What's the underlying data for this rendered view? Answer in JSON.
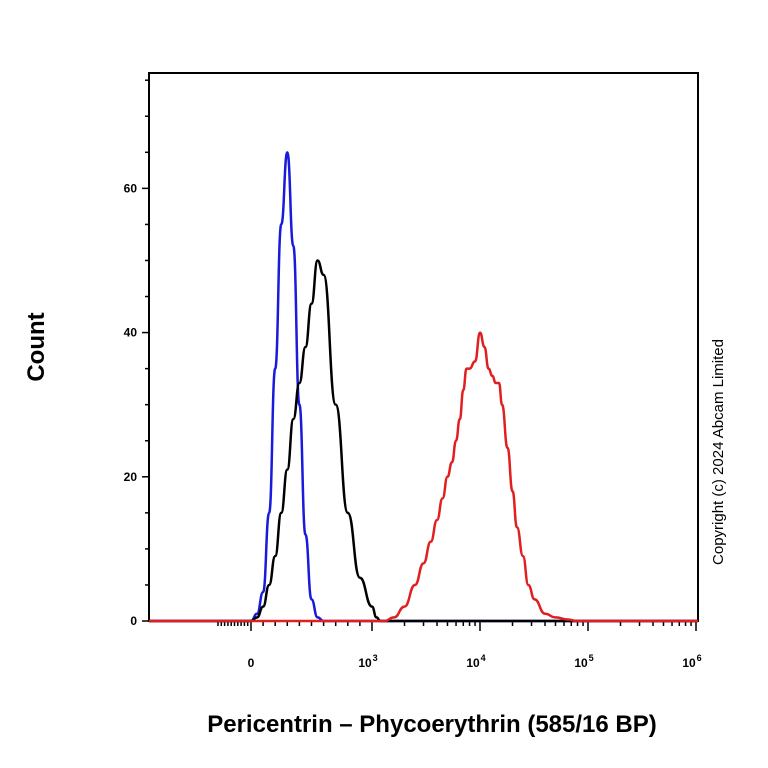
{
  "chart_data": {
    "type": "line",
    "title": "",
    "xlabel": "Pericentrin – Phycoerythrin (585/16 BP)",
    "ylabel": "Count",
    "x_scale": "biexponential",
    "xlim": [
      -1000,
      1000000
    ],
    "ylim": [
      0,
      76
    ],
    "y_ticks": [
      0,
      20,
      40,
      60
    ],
    "y_tick_labels": [
      "0",
      "20",
      "40",
      "60"
    ],
    "x_ticks": [
      {
        "value": 0,
        "label": "0",
        "exp": ""
      },
      {
        "value": 1000,
        "label": "10",
        "exp": "3"
      },
      {
        "value": 10000,
        "label": "10",
        "exp": "4"
      },
      {
        "value": 100000,
        "label": "10",
        "exp": "5"
      },
      {
        "value": 1000000,
        "label": "10",
        "exp": "6"
      }
    ],
    "grid": false,
    "legend": "none",
    "series": [
      {
        "color": "#1a1adc",
        "x": [
          0,
          50,
          100,
          150,
          200,
          250,
          300,
          350,
          400,
          450,
          500,
          550,
          600,
          700
        ],
        "y": [
          0,
          1,
          4,
          15,
          35,
          55,
          65,
          52,
          30,
          12,
          3,
          0.5,
          0,
          0
        ]
      },
      {
        "color": "#000000",
        "x": [
          0,
          50,
          100,
          150,
          200,
          250,
          300,
          350,
          400,
          450,
          500,
          550,
          600,
          700,
          800,
          900,
          1000,
          1100,
          1200
        ],
        "y": [
          0,
          0.5,
          2,
          5,
          9,
          15,
          21,
          28,
          33,
          38,
          44,
          50,
          48,
          30,
          15,
          6,
          2,
          0.5,
          0
        ]
      },
      {
        "color": "#e02020",
        "x": [
          1300,
          1600,
          2000,
          2500,
          3000,
          3500,
          4000,
          4500,
          5000,
          5500,
          6000,
          6500,
          7000,
          7500,
          8000,
          9000,
          10000,
          11000,
          12000,
          13000,
          14000,
          15000,
          16000,
          18000,
          20000,
          22000,
          25000,
          28000,
          32000,
          40000,
          50000,
          65000,
          80000,
          110000
        ],
        "y": [
          0,
          0.5,
          2,
          5,
          8,
          11,
          14,
          17,
          20,
          22,
          25,
          28,
          32,
          35,
          35,
          36,
          40,
          38,
          35,
          34,
          33,
          33,
          30,
          24,
          18,
          13,
          9,
          5,
          3,
          1,
          0.5,
          0.2,
          0,
          0
        ]
      }
    ],
    "annotation": "Copyright (c) 2024 Abcam Limited"
  }
}
